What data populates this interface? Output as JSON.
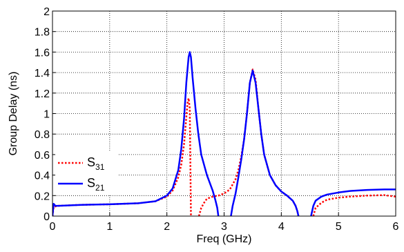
{
  "chart_data": {
    "type": "line",
    "title": "",
    "xlabel": "Freq (GHz)",
    "ylabel": "Group Delay (ns)",
    "xlim": [
      0,
      6
    ],
    "ylim": [
      0,
      2
    ],
    "xticks": [
      0,
      1,
      2,
      3,
      4,
      5,
      6
    ],
    "yticks": [
      0,
      0.2,
      0.4,
      0.6,
      0.8,
      1,
      1.2,
      1.4,
      1.6,
      1.8,
      2
    ],
    "grid": true,
    "legend_position": "bottom-left",
    "series": [
      {
        "name": "S31",
        "name_main": "S",
        "name_sub": "31",
        "color": "#ff0000",
        "style": "dotted",
        "segments": [
          [
            [
              0.0,
              0.0
            ],
            [
              0.02,
              0.09
            ],
            [
              0.1,
              0.1
            ],
            [
              0.5,
              0.11
            ],
            [
              1.0,
              0.115
            ],
            [
              1.5,
              0.125
            ],
            [
              1.8,
              0.145
            ],
            [
              2.0,
              0.19
            ],
            [
              2.1,
              0.25
            ],
            [
              2.2,
              0.38
            ],
            [
              2.25,
              0.5
            ],
            [
              2.3,
              0.7
            ],
            [
              2.33,
              0.9
            ],
            [
              2.36,
              1.1
            ],
            [
              2.38,
              1.15
            ],
            [
              2.4,
              1.05
            ],
            [
              2.42,
              0.0
            ]
          ],
          [
            [
              2.56,
              0.0
            ],
            [
              2.6,
              0.08
            ],
            [
              2.65,
              0.13
            ],
            [
              2.7,
              0.17
            ],
            [
              2.8,
              0.19
            ],
            [
              2.9,
              0.2
            ],
            [
              3.0,
              0.22
            ],
            [
              3.1,
              0.26
            ],
            [
              3.2,
              0.36
            ],
            [
              3.25,
              0.45
            ],
            [
              3.3,
              0.58
            ],
            [
              3.35,
              0.75
            ],
            [
              3.4,
              1.0
            ],
            [
              3.45,
              1.3
            ],
            [
              3.5,
              1.43
            ],
            [
              3.55,
              1.33
            ],
            [
              3.6,
              1.05
            ],
            [
              3.65,
              0.8
            ],
            [
              3.7,
              0.6
            ],
            [
              3.8,
              0.4
            ],
            [
              3.9,
              0.3
            ],
            [
              4.0,
              0.24
            ],
            [
              4.1,
              0.2
            ],
            [
              4.2,
              0.15
            ],
            [
              4.25,
              0.1
            ],
            [
              4.28,
              0.05
            ],
            [
              4.3,
              0.0
            ]
          ],
          [
            [
              4.56,
              0.0
            ],
            [
              4.6,
              0.08
            ],
            [
              4.7,
              0.13
            ],
            [
              4.8,
              0.16
            ],
            [
              5.0,
              0.18
            ],
            [
              5.2,
              0.19
            ],
            [
              5.5,
              0.2
            ],
            [
              5.8,
              0.205
            ],
            [
              6.0,
              0.19
            ]
          ]
        ]
      },
      {
        "name": "S21",
        "name_main": "S",
        "name_sub": "21",
        "color": "#0000ff",
        "style": "solid",
        "segments": [
          [
            [
              0.0,
              0.0
            ],
            [
              0.02,
              0.12
            ],
            [
              0.05,
              0.1
            ],
            [
              0.1,
              0.1
            ],
            [
              0.5,
              0.11
            ],
            [
              1.0,
              0.115
            ],
            [
              1.5,
              0.125
            ],
            [
              1.8,
              0.145
            ],
            [
              2.0,
              0.2
            ],
            [
              2.1,
              0.27
            ],
            [
              2.2,
              0.45
            ],
            [
              2.25,
              0.65
            ],
            [
              2.3,
              0.95
            ],
            [
              2.34,
              1.3
            ],
            [
              2.38,
              1.55
            ],
            [
              2.4,
              1.6
            ],
            [
              2.42,
              1.55
            ],
            [
              2.45,
              1.35
            ],
            [
              2.5,
              1.05
            ],
            [
              2.55,
              0.8
            ],
            [
              2.6,
              0.6
            ],
            [
              2.7,
              0.4
            ],
            [
              2.8,
              0.25
            ],
            [
              2.85,
              0.15
            ],
            [
              2.88,
              0.08
            ],
            [
              2.9,
              0.0
            ]
          ],
          [
            [
              3.12,
              0.0
            ],
            [
              3.15,
              0.1
            ],
            [
              3.2,
              0.22
            ],
            [
              3.25,
              0.38
            ],
            [
              3.3,
              0.55
            ],
            [
              3.35,
              0.75
            ],
            [
              3.4,
              1.0
            ],
            [
              3.45,
              1.3
            ],
            [
              3.5,
              1.42
            ],
            [
              3.55,
              1.3
            ],
            [
              3.6,
              1.05
            ],
            [
              3.65,
              0.8
            ],
            [
              3.7,
              0.6
            ],
            [
              3.8,
              0.4
            ],
            [
              3.9,
              0.3
            ],
            [
              4.0,
              0.24
            ],
            [
              4.1,
              0.2
            ],
            [
              4.2,
              0.15
            ],
            [
              4.25,
              0.1
            ],
            [
              4.28,
              0.05
            ],
            [
              4.3,
              0.0
            ]
          ],
          [
            [
              4.52,
              0.0
            ],
            [
              4.56,
              0.1
            ],
            [
              4.6,
              0.15
            ],
            [
              4.7,
              0.19
            ],
            [
              4.8,
              0.21
            ],
            [
              5.0,
              0.23
            ],
            [
              5.2,
              0.245
            ],
            [
              5.5,
              0.255
            ],
            [
              5.8,
              0.26
            ],
            [
              6.0,
              0.26
            ]
          ]
        ]
      }
    ]
  }
}
